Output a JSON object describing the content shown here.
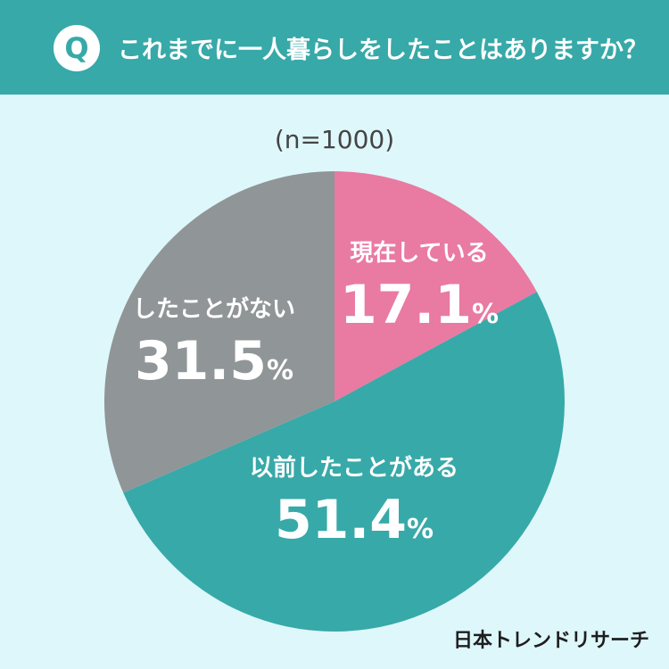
{
  "header": {
    "badge": "Q",
    "question": "これまでに一人暮らしをしたことはありますか？"
  },
  "sample_size": "(n=1000)",
  "brand": "日本トレンドリサーチ",
  "colors": {
    "header_bg": "#37a9a8",
    "background": "#def7fa",
    "current": "#e97aa2",
    "past": "#37a9a8",
    "never": "#909597"
  },
  "chart_data": {
    "type": "pie",
    "title": "これまでに一人暮らしをしたことはありますか？",
    "slices": [
      {
        "label": "現在している",
        "value": 17.1,
        "display": "17.1",
        "color": "#e97aa2"
      },
      {
        "label": "以前したことがある",
        "value": 51.4,
        "display": "51.4",
        "color": "#37a9a8"
      },
      {
        "label": "したことがない",
        "value": 31.5,
        "display": "31.5",
        "color": "#909597"
      }
    ],
    "unit": "%"
  }
}
